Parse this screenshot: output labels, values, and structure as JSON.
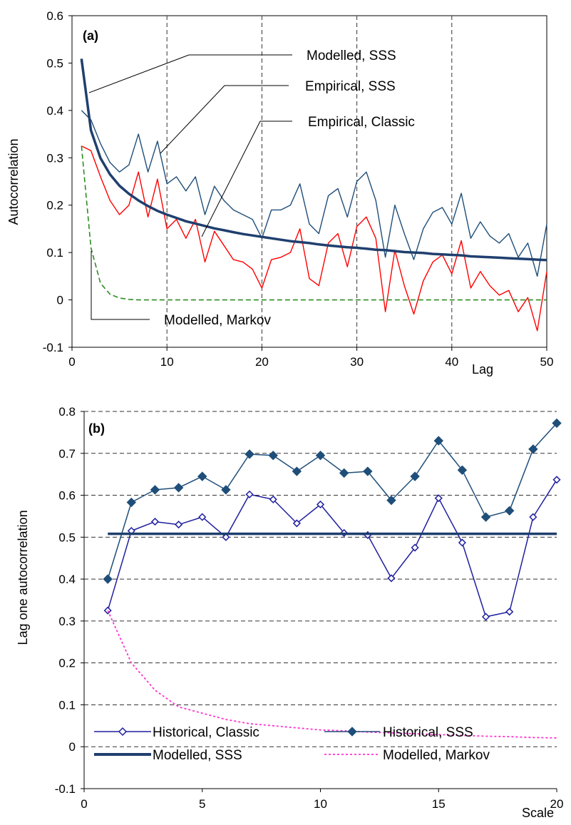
{
  "chart_data": [
    {
      "panel": "(a)",
      "type": "line",
      "xlabel": "Lag",
      "ylabel": "Autocorrelation",
      "xlim": [
        0,
        50
      ],
      "ylim": [
        -0.1,
        0.6
      ],
      "x_ticks": [
        "0",
        "10",
        "20",
        "30",
        "40",
        "50"
      ],
      "y_ticks": [
        "-0.1",
        "0",
        "0.1",
        "0.2",
        "0.3",
        "0.4",
        "0.5",
        "0.6"
      ],
      "grid": "vertical-dashed",
      "annotations": [
        "Modelled, SSS",
        "Empirical, SSS",
        "Empirical, Classic",
        "Modelled, Markov"
      ],
      "series": [
        {
          "name": "Empirical, SSS",
          "color": "#1F4E79",
          "x": [
            1,
            2,
            3,
            4,
            5,
            6,
            7,
            8,
            9,
            10,
            11,
            12,
            13,
            14,
            15,
            16,
            17,
            18,
            19,
            20,
            21,
            22,
            23,
            24,
            25,
            26,
            27,
            28,
            29,
            30,
            31,
            32,
            33,
            34,
            35,
            36,
            37,
            38,
            39,
            40,
            41,
            42,
            43,
            44,
            45,
            46,
            47,
            48,
            49,
            50
          ],
          "y": [
            0.4,
            0.38,
            0.33,
            0.29,
            0.27,
            0.285,
            0.35,
            0.27,
            0.335,
            0.245,
            0.26,
            0.23,
            0.26,
            0.18,
            0.24,
            0.21,
            0.19,
            0.18,
            0.17,
            0.13,
            0.19,
            0.19,
            0.2,
            0.245,
            0.16,
            0.14,
            0.22,
            0.235,
            0.175,
            0.25,
            0.27,
            0.21,
            0.09,
            0.2,
            0.14,
            0.085,
            0.15,
            0.185,
            0.195,
            0.16,
            0.225,
            0.13,
            0.165,
            0.135,
            0.12,
            0.14,
            0.09,
            0.12,
            0.05,
            0.16
          ]
        },
        {
          "name": "Empirical, Classic",
          "color": "#FF0000",
          "x": [
            1,
            2,
            3,
            4,
            5,
            6,
            7,
            8,
            9,
            10,
            11,
            12,
            13,
            14,
            15,
            16,
            17,
            18,
            19,
            20,
            21,
            22,
            23,
            24,
            25,
            26,
            27,
            28,
            29,
            30,
            31,
            32,
            33,
            34,
            35,
            36,
            37,
            38,
            39,
            40,
            41,
            42,
            43,
            44,
            45,
            46,
            47,
            48,
            49,
            50
          ],
          "y": [
            0.325,
            0.315,
            0.26,
            0.21,
            0.18,
            0.2,
            0.27,
            0.175,
            0.255,
            0.15,
            0.17,
            0.13,
            0.17,
            0.08,
            0.145,
            0.115,
            0.085,
            0.08,
            0.065,
            0.025,
            0.085,
            0.09,
            0.1,
            0.15,
            0.045,
            0.03,
            0.12,
            0.14,
            0.07,
            0.155,
            0.175,
            0.13,
            -0.025,
            0.105,
            0.03,
            -0.03,
            0.04,
            0.08,
            0.095,
            0.055,
            0.125,
            0.025,
            0.06,
            0.03,
            0.01,
            0.02,
            -0.025,
            0.005,
            -0.065,
            0.06
          ]
        },
        {
          "name": "Modelled, SSS",
          "color": "#1F3F6E",
          "x": [
            1,
            2,
            3,
            4,
            5,
            6,
            7,
            8,
            9,
            10,
            11,
            12,
            13,
            14,
            15,
            16,
            17,
            18,
            19,
            20,
            21,
            22,
            23,
            24,
            25,
            26,
            27,
            28,
            29,
            30,
            31,
            32,
            33,
            34,
            35,
            36,
            37,
            38,
            39,
            40,
            41,
            42,
            43,
            44,
            45,
            46,
            47,
            48,
            49,
            50
          ],
          "y": [
            0.509,
            0.358,
            0.299,
            0.265,
            0.241,
            0.224,
            0.21,
            0.198,
            0.188,
            0.18,
            0.173,
            0.166,
            0.161,
            0.156,
            0.151,
            0.147,
            0.143,
            0.139,
            0.136,
            0.133,
            0.13,
            0.127,
            0.124,
            0.122,
            0.12,
            0.117,
            0.115,
            0.113,
            0.111,
            0.11,
            0.108,
            0.106,
            0.105,
            0.103,
            0.101,
            0.1,
            0.099,
            0.097,
            0.096,
            0.095,
            0.094,
            0.092,
            0.091,
            0.09,
            0.089,
            0.088,
            0.087,
            0.086,
            0.085,
            0.084
          ]
        },
        {
          "name": "Modelled, Markov",
          "color": "#2E8B22",
          "x": [
            1,
            2,
            3,
            4,
            5,
            6,
            7,
            8,
            9,
            10,
            15,
            20,
            25,
            30,
            35,
            40,
            45,
            50
          ],
          "y": [
            0.325,
            0.11,
            0.035,
            0.012,
            0.004,
            0.001,
            0.0,
            0.0,
            0.0,
            0.0,
            0.0,
            0.0,
            0.0,
            0.0,
            0.0,
            0.0,
            0.0,
            0.0
          ]
        }
      ]
    },
    {
      "panel": "(b)",
      "type": "line",
      "xlabel": "Scale",
      "ylabel": "Lag one autocorrelation",
      "xlim": [
        0,
        20
      ],
      "ylim": [
        -0.1,
        0.8
      ],
      "x_ticks": [
        "0",
        "5",
        "10",
        "15",
        "20"
      ],
      "y_ticks": [
        "-0.1",
        "0",
        "0.1",
        "0.2",
        "0.3",
        "0.4",
        "0.5",
        "0.6",
        "0.7",
        "0.8"
      ],
      "grid": "horizontal-dashed",
      "legend_position": "bottom",
      "series": [
        {
          "name": "Historical, Classic",
          "color": "#1F1F9F",
          "marker": "open-diamond",
          "x": [
            1,
            2,
            3,
            4,
            5,
            6,
            7,
            8,
            9,
            10,
            11,
            12,
            13,
            14,
            15,
            16,
            17,
            18,
            19,
            20
          ],
          "y": [
            0.325,
            0.515,
            0.537,
            0.53,
            0.548,
            0.5,
            0.602,
            0.59,
            0.533,
            0.578,
            0.51,
            0.505,
            0.402,
            0.475,
            0.593,
            0.487,
            0.31,
            0.322,
            0.548,
            0.637
          ]
        },
        {
          "name": "Historical, SSS",
          "color": "#1F4E79",
          "marker": "filled-diamond",
          "x": [
            1,
            2,
            3,
            4,
            5,
            6,
            7,
            8,
            9,
            10,
            11,
            12,
            13,
            14,
            15,
            16,
            17,
            18,
            19,
            20
          ],
          "y": [
            0.4,
            0.583,
            0.613,
            0.618,
            0.645,
            0.613,
            0.698,
            0.695,
            0.657,
            0.695,
            0.653,
            0.657,
            0.588,
            0.645,
            0.73,
            0.66,
            0.548,
            0.563,
            0.71,
            0.772
          ]
        },
        {
          "name": "Modelled, SSS",
          "color": "#1F3F6E",
          "x": [
            1,
            20
          ],
          "y": [
            0.508,
            0.508
          ]
        },
        {
          "name": "Modelled, Markov",
          "color": "#FF33CC",
          "dashed": true,
          "x": [
            1,
            2,
            3,
            4,
            5,
            6,
            7,
            8,
            9,
            10,
            11,
            12,
            13,
            14,
            15,
            16,
            17,
            18,
            19,
            20
          ],
          "y": [
            0.325,
            0.2,
            0.135,
            0.095,
            0.08,
            0.065,
            0.055,
            0.05,
            0.045,
            0.04,
            0.038,
            0.035,
            0.033,
            0.031,
            0.029,
            0.027,
            0.025,
            0.024,
            0.022,
            0.021
          ]
        }
      ]
    }
  ]
}
